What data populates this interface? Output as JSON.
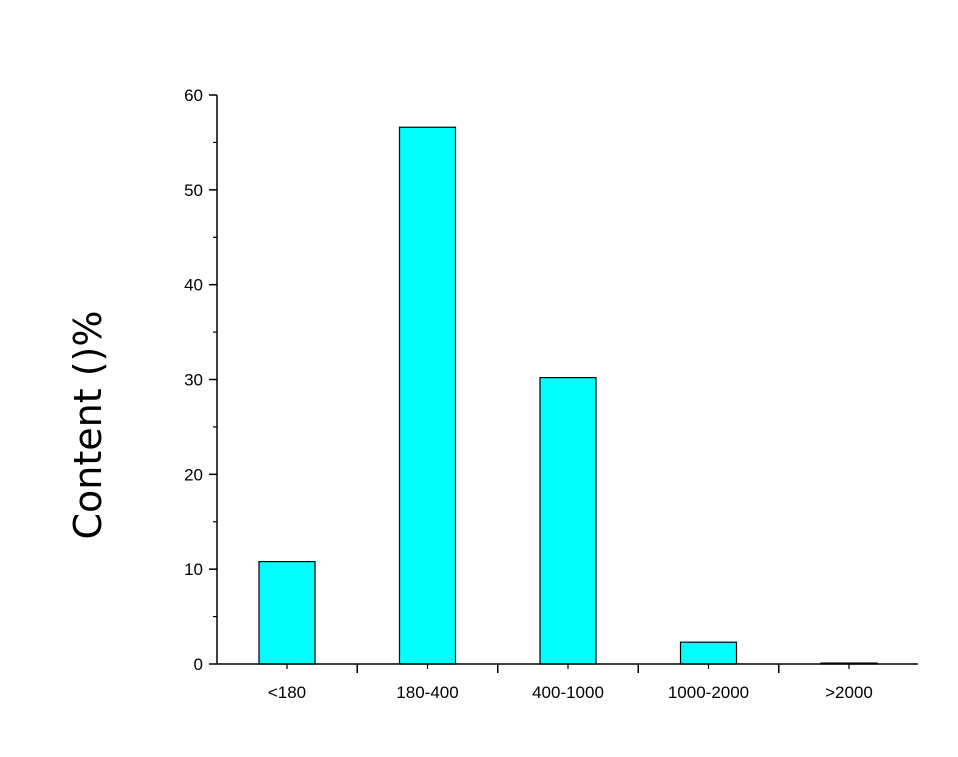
{
  "chart_data": {
    "type": "bar",
    "categories": [
      "<180",
      "180-400",
      "400-1000",
      "1000-2000",
      ">2000"
    ],
    "values": [
      10.8,
      56.6,
      30.2,
      2.3,
      0.1
    ],
    "xlabel": "",
    "ylabel": "Content ()%",
    "ylim": [
      0,
      60
    ],
    "yticks": [
      0,
      10,
      20,
      30,
      40,
      50,
      60
    ],
    "bar_color": "#00ffff",
    "bar_edge_color": "#000000",
    "grid": false,
    "legend": "none"
  }
}
